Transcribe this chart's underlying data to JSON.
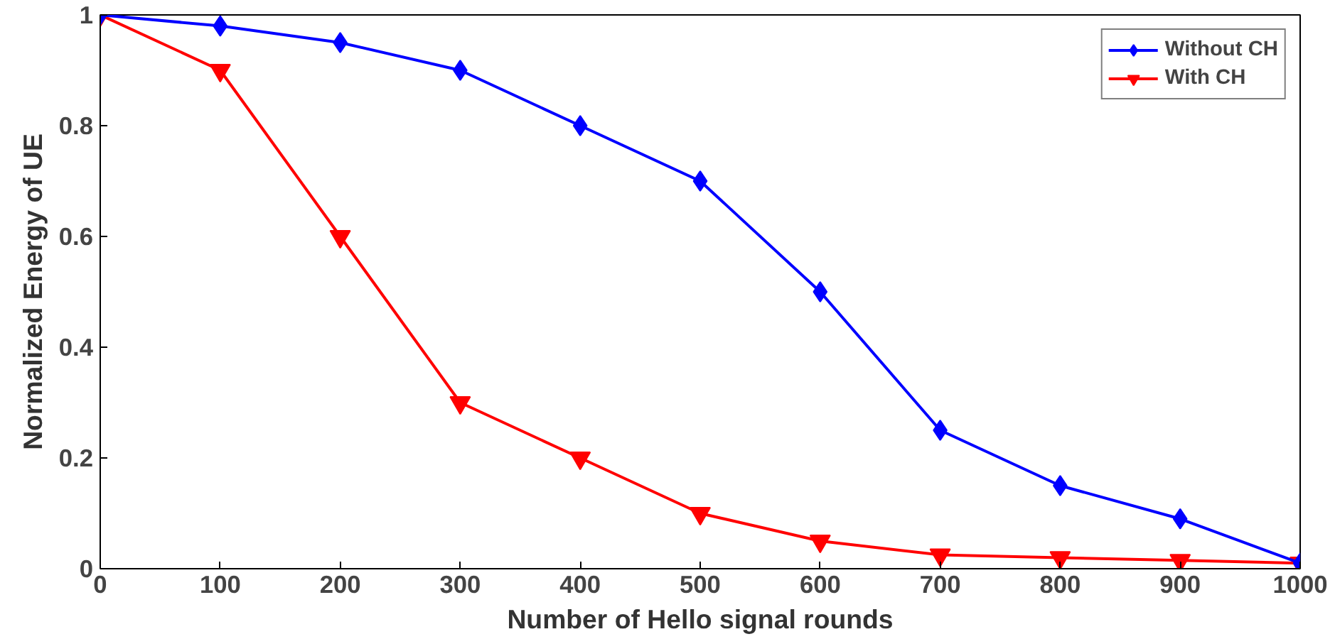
{
  "chart_data": {
    "type": "line",
    "xlabel": "Number of Hello signal rounds",
    "ylabel": "Normalized Energy of UE",
    "x": [
      0,
      100,
      200,
      300,
      400,
      500,
      600,
      700,
      800,
      900,
      1000
    ],
    "series": [
      {
        "name": "Without CH",
        "color": "#0000ff",
        "marker": "diamond",
        "values": [
          1,
          0.98,
          0.95,
          0.9,
          0.8,
          0.7,
          0.5,
          0.25,
          0.15,
          0.09,
          0.01
        ]
      },
      {
        "name": "With CH",
        "color": "#ff0000",
        "marker": "triangle",
        "values": [
          1,
          0.9,
          0.6,
          0.3,
          0.2,
          0.1,
          0.05,
          0.025,
          0.02,
          0.015,
          0.01
        ]
      }
    ],
    "xlim": [
      0,
      1000
    ],
    "xticks": [
      0,
      100,
      200,
      300,
      400,
      500,
      600,
      700,
      800,
      900,
      1000
    ],
    "ylim": [
      0,
      1
    ],
    "yticks": [
      0,
      0.2,
      0.4,
      0.6,
      0.8,
      {
        "value": 1,
        "label": "1"
      }
    ],
    "grid": false,
    "legend": "top right",
    "line_style": "solid"
  }
}
